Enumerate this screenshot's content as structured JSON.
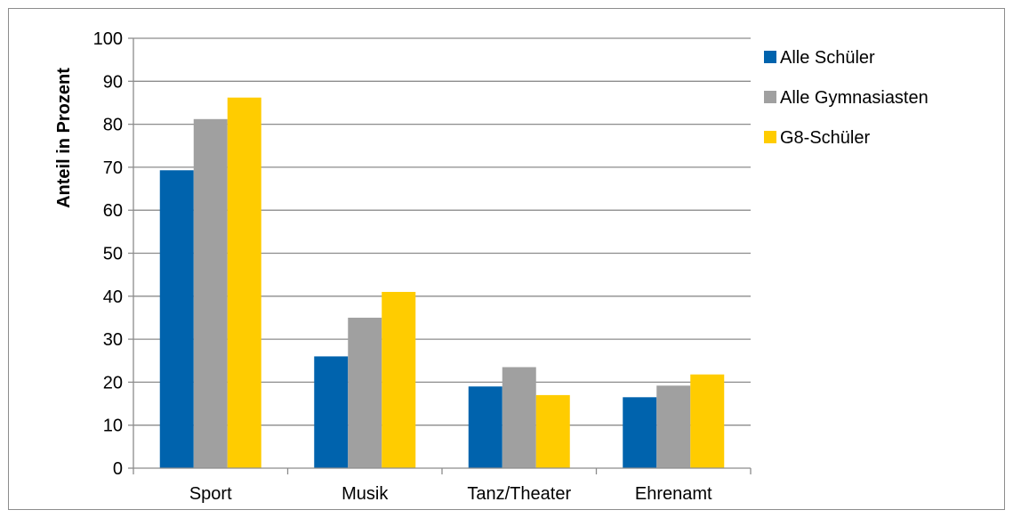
{
  "chart_data": {
    "type": "bar",
    "title": "",
    "xlabel": "",
    "ylabel": "Anteil in Prozent",
    "ylim": [
      0,
      100
    ],
    "yticks": [
      0,
      10,
      20,
      30,
      40,
      50,
      60,
      70,
      80,
      90,
      100
    ],
    "grid": true,
    "legend_position": "right",
    "categories": [
      "Sport",
      "Musik",
      "Tanz/Theater",
      "Ehrenamt"
    ],
    "series": [
      {
        "name": "Alle Schüler",
        "color": "#0063ad",
        "values": [
          69.3,
          26,
          19,
          16.5
        ]
      },
      {
        "name": "Alle Gymnasiasten",
        "color": "#a0a0a0",
        "values": [
          81.2,
          35,
          23.5,
          19.2
        ]
      },
      {
        "name": "G8-Schüler",
        "color": "#ffcc00",
        "values": [
          86.2,
          41,
          17,
          21.8
        ]
      }
    ]
  }
}
